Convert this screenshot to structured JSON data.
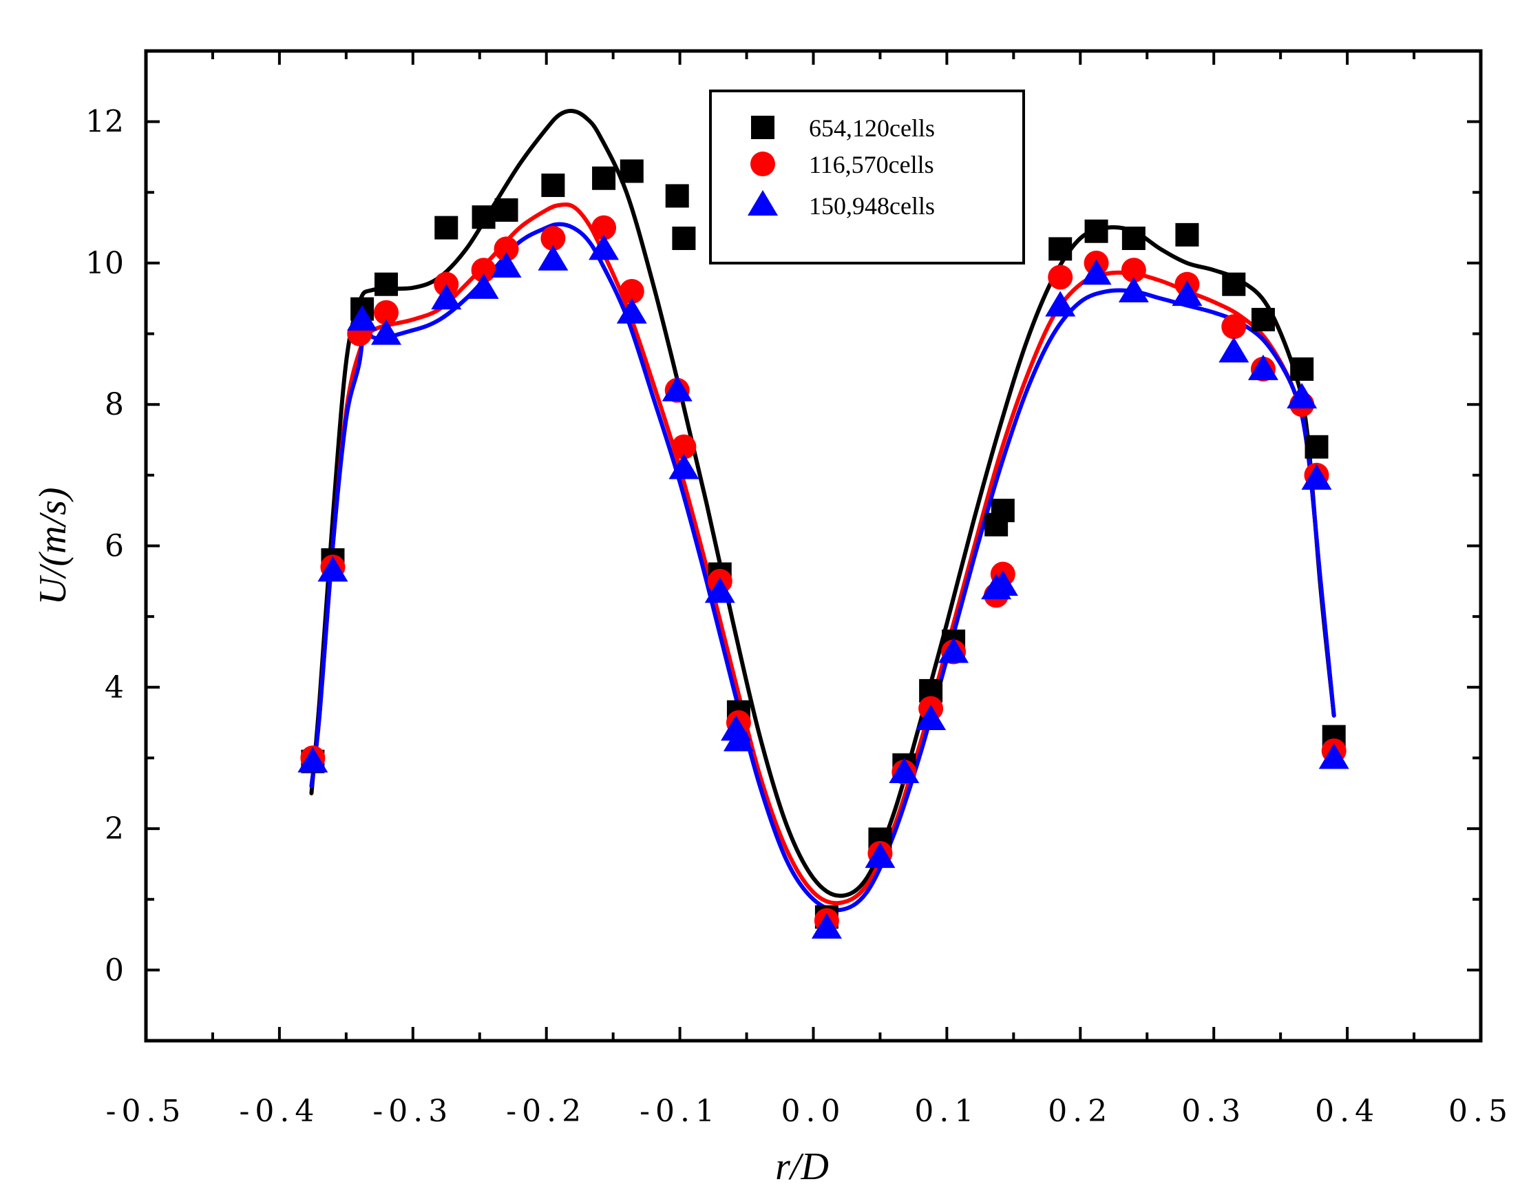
{
  "chart_data": {
    "type": "scatter",
    "title": "",
    "xlabel": "r/D",
    "ylabel": "U/(m/s)",
    "xlim": [
      -0.5,
      0.5
    ],
    "ylim": [
      -1,
      13
    ],
    "x_ticks": [
      -0.5,
      -0.4,
      -0.3,
      -0.2,
      -0.1,
      0.0,
      0.1,
      0.2,
      0.3,
      0.4,
      0.5
    ],
    "x_tick_labels": [
      "-0.5",
      "-0.4",
      "-0.3",
      "-0.2",
      "-0.1",
      "0.0",
      "0.1",
      "0.2",
      "0.3",
      "0.4",
      "0.5"
    ],
    "y_ticks": [
      0,
      2,
      4,
      6,
      8,
      10,
      12
    ],
    "y_tick_labels": [
      "0",
      "2",
      "4",
      "6",
      "8",
      "10",
      "12"
    ],
    "grid": false,
    "legend_position": "top-center",
    "series": [
      {
        "name": "654,120cells",
        "color": "#000000",
        "marker": "square",
        "points": [
          [
            -0.375,
            2.95
          ],
          [
            -0.36,
            5.8
          ],
          [
            -0.338,
            9.35
          ],
          [
            -0.32,
            9.7
          ],
          [
            -0.275,
            10.5
          ],
          [
            -0.247,
            10.65
          ],
          [
            -0.23,
            10.75
          ],
          [
            -0.195,
            11.1
          ],
          [
            -0.157,
            11.2
          ],
          [
            -0.136,
            11.3
          ],
          [
            -0.102,
            10.95
          ],
          [
            -0.097,
            10.35
          ],
          [
            -0.07,
            5.6
          ],
          [
            -0.056,
            3.65
          ],
          [
            0.01,
            0.75
          ],
          [
            0.05,
            1.85
          ],
          [
            0.068,
            2.9
          ],
          [
            0.088,
            3.95
          ],
          [
            0.105,
            4.65
          ],
          [
            0.137,
            6.3
          ],
          [
            0.142,
            6.5
          ],
          [
            0.185,
            10.2
          ],
          [
            0.212,
            10.45
          ],
          [
            0.24,
            10.35
          ],
          [
            0.28,
            10.4
          ],
          [
            0.315,
            9.7
          ],
          [
            0.337,
            9.2
          ],
          [
            0.366,
            8.5
          ],
          [
            0.377,
            7.4
          ],
          [
            0.39,
            3.3
          ]
        ],
        "curve": [
          [
            -0.376,
            2.5
          ],
          [
            -0.37,
            3.8
          ],
          [
            -0.36,
            6.4
          ],
          [
            -0.35,
            8.6
          ],
          [
            -0.34,
            9.45
          ],
          [
            -0.33,
            9.62
          ],
          [
            -0.3,
            9.65
          ],
          [
            -0.28,
            9.8
          ],
          [
            -0.26,
            10.2
          ],
          [
            -0.24,
            10.8
          ],
          [
            -0.22,
            11.4
          ],
          [
            -0.2,
            11.9
          ],
          [
            -0.19,
            12.1
          ],
          [
            -0.18,
            12.15
          ],
          [
            -0.17,
            12.05
          ],
          [
            -0.16,
            11.8
          ],
          [
            -0.14,
            11.0
          ],
          [
            -0.12,
            9.7
          ],
          [
            -0.1,
            8.2
          ],
          [
            -0.08,
            6.6
          ],
          [
            -0.06,
            4.9
          ],
          [
            -0.04,
            3.3
          ],
          [
            -0.02,
            2.05
          ],
          [
            0.0,
            1.3
          ],
          [
            0.02,
            1.05
          ],
          [
            0.04,
            1.3
          ],
          [
            0.06,
            2.2
          ],
          [
            0.08,
            3.5
          ],
          [
            0.1,
            4.9
          ],
          [
            0.12,
            6.35
          ],
          [
            0.14,
            7.7
          ],
          [
            0.16,
            8.9
          ],
          [
            0.18,
            9.8
          ],
          [
            0.2,
            10.35
          ],
          [
            0.22,
            10.5
          ],
          [
            0.24,
            10.45
          ],
          [
            0.26,
            10.2
          ],
          [
            0.28,
            10.0
          ],
          [
            0.3,
            9.9
          ],
          [
            0.32,
            9.75
          ],
          [
            0.34,
            9.4
          ],
          [
            0.36,
            8.5
          ],
          [
            0.37,
            7.6
          ],
          [
            0.38,
            5.4
          ],
          [
            0.39,
            3.6
          ]
        ]
      },
      {
        "name": "116,570cells",
        "color": "#ff0000",
        "marker": "circle",
        "points": [
          [
            -0.375,
            3.0
          ],
          [
            -0.36,
            5.7
          ],
          [
            -0.34,
            9.0
          ],
          [
            -0.32,
            9.3
          ],
          [
            -0.275,
            9.7
          ],
          [
            -0.247,
            9.9
          ],
          [
            -0.23,
            10.2
          ],
          [
            -0.195,
            10.35
          ],
          [
            -0.157,
            10.5
          ],
          [
            -0.136,
            9.6
          ],
          [
            -0.102,
            8.2
          ],
          [
            -0.097,
            7.4
          ],
          [
            -0.07,
            5.5
          ],
          [
            -0.056,
            3.5
          ],
          [
            0.01,
            0.7
          ],
          [
            0.05,
            1.65
          ],
          [
            0.068,
            2.8
          ],
          [
            0.088,
            3.7
          ],
          [
            0.105,
            4.5
          ],
          [
            0.137,
            5.3
          ],
          [
            0.142,
            5.6
          ],
          [
            0.185,
            9.8
          ],
          [
            0.212,
            10.0
          ],
          [
            0.24,
            9.9
          ],
          [
            0.28,
            9.7
          ],
          [
            0.315,
            9.1
          ],
          [
            0.337,
            8.5
          ],
          [
            0.366,
            8.0
          ],
          [
            0.377,
            7.0
          ],
          [
            0.39,
            3.1
          ]
        ],
        "curve": [
          [
            -0.376,
            2.6
          ],
          [
            -0.37,
            3.6
          ],
          [
            -0.36,
            6.0
          ],
          [
            -0.35,
            7.9
          ],
          [
            -0.34,
            8.75
          ],
          [
            -0.33,
            9.05
          ],
          [
            -0.3,
            9.2
          ],
          [
            -0.28,
            9.35
          ],
          [
            -0.26,
            9.7
          ],
          [
            -0.24,
            10.1
          ],
          [
            -0.22,
            10.5
          ],
          [
            -0.2,
            10.75
          ],
          [
            -0.19,
            10.82
          ],
          [
            -0.18,
            10.8
          ],
          [
            -0.17,
            10.6
          ],
          [
            -0.16,
            10.25
          ],
          [
            -0.14,
            9.4
          ],
          [
            -0.12,
            8.3
          ],
          [
            -0.1,
            7.1
          ],
          [
            -0.08,
            5.7
          ],
          [
            -0.06,
            4.2
          ],
          [
            -0.04,
            2.75
          ],
          [
            -0.02,
            1.7
          ],
          [
            0.0,
            1.1
          ],
          [
            0.02,
            0.95
          ],
          [
            0.04,
            1.2
          ],
          [
            0.06,
            2.0
          ],
          [
            0.08,
            3.2
          ],
          [
            0.1,
            4.55
          ],
          [
            0.12,
            5.95
          ],
          [
            0.14,
            7.3
          ],
          [
            0.16,
            8.4
          ],
          [
            0.18,
            9.25
          ],
          [
            0.2,
            9.7
          ],
          [
            0.22,
            9.85
          ],
          [
            0.24,
            9.85
          ],
          [
            0.26,
            9.75
          ],
          [
            0.28,
            9.6
          ],
          [
            0.3,
            9.45
          ],
          [
            0.32,
            9.25
          ],
          [
            0.34,
            8.9
          ],
          [
            0.36,
            8.2
          ],
          [
            0.37,
            7.4
          ],
          [
            0.38,
            5.5
          ],
          [
            0.39,
            3.6
          ]
        ]
      },
      {
        "name": "150,948cells",
        "color": "#0000ff",
        "marker": "triangle",
        "points": [
          [
            -0.375,
            2.95
          ],
          [
            -0.36,
            5.65
          ],
          [
            -0.338,
            9.2
          ],
          [
            -0.32,
            9.0
          ],
          [
            -0.275,
            9.5
          ],
          [
            -0.247,
            9.65
          ],
          [
            -0.23,
            9.95
          ],
          [
            -0.195,
            10.05
          ],
          [
            -0.157,
            10.2
          ],
          [
            -0.136,
            9.3
          ],
          [
            -0.102,
            8.2
          ],
          [
            -0.097,
            7.1
          ],
          [
            -0.07,
            5.35
          ],
          [
            -0.058,
            3.4
          ],
          [
            -0.056,
            3.25
          ],
          [
            0.01,
            0.6
          ],
          [
            0.05,
            1.6
          ],
          [
            0.068,
            2.8
          ],
          [
            0.088,
            3.55
          ],
          [
            0.105,
            4.5
          ],
          [
            0.137,
            5.4
          ],
          [
            0.142,
            5.45
          ],
          [
            0.185,
            9.4
          ],
          [
            0.212,
            9.85
          ],
          [
            0.24,
            9.6
          ],
          [
            0.28,
            9.55
          ],
          [
            0.315,
            8.75
          ],
          [
            0.337,
            8.5
          ],
          [
            0.366,
            8.1
          ],
          [
            0.377,
            6.95
          ],
          [
            0.39,
            3.0
          ]
        ],
        "curve": [
          [
            -0.376,
            2.6
          ],
          [
            -0.37,
            3.6
          ],
          [
            -0.36,
            6.0
          ],
          [
            -0.35,
            7.8
          ],
          [
            -0.34,
            8.6
          ],
          [
            -0.335,
            9.35
          ],
          [
            -0.33,
            8.95
          ],
          [
            -0.3,
            9.05
          ],
          [
            -0.28,
            9.2
          ],
          [
            -0.26,
            9.5
          ],
          [
            -0.24,
            9.9
          ],
          [
            -0.22,
            10.3
          ],
          [
            -0.2,
            10.5
          ],
          [
            -0.19,
            10.55
          ],
          [
            -0.18,
            10.5
          ],
          [
            -0.17,
            10.35
          ],
          [
            -0.16,
            10.05
          ],
          [
            -0.14,
            9.25
          ],
          [
            -0.12,
            8.1
          ],
          [
            -0.1,
            6.9
          ],
          [
            -0.08,
            5.5
          ],
          [
            -0.06,
            4.0
          ],
          [
            -0.04,
            2.6
          ],
          [
            -0.02,
            1.55
          ],
          [
            0.0,
            1.0
          ],
          [
            0.02,
            0.85
          ],
          [
            0.04,
            1.1
          ],
          [
            0.06,
            1.9
          ],
          [
            0.08,
            3.05
          ],
          [
            0.1,
            4.4
          ],
          [
            0.12,
            5.8
          ],
          [
            0.14,
            7.1
          ],
          [
            0.16,
            8.2
          ],
          [
            0.18,
            9.0
          ],
          [
            0.2,
            9.45
          ],
          [
            0.22,
            9.6
          ],
          [
            0.24,
            9.6
          ],
          [
            0.26,
            9.5
          ],
          [
            0.28,
            9.4
          ],
          [
            0.3,
            9.3
          ],
          [
            0.32,
            9.15
          ],
          [
            0.34,
            8.85
          ],
          [
            0.36,
            8.2
          ],
          [
            0.37,
            7.4
          ],
          [
            0.38,
            5.5
          ],
          [
            0.39,
            3.6
          ]
        ]
      }
    ]
  }
}
